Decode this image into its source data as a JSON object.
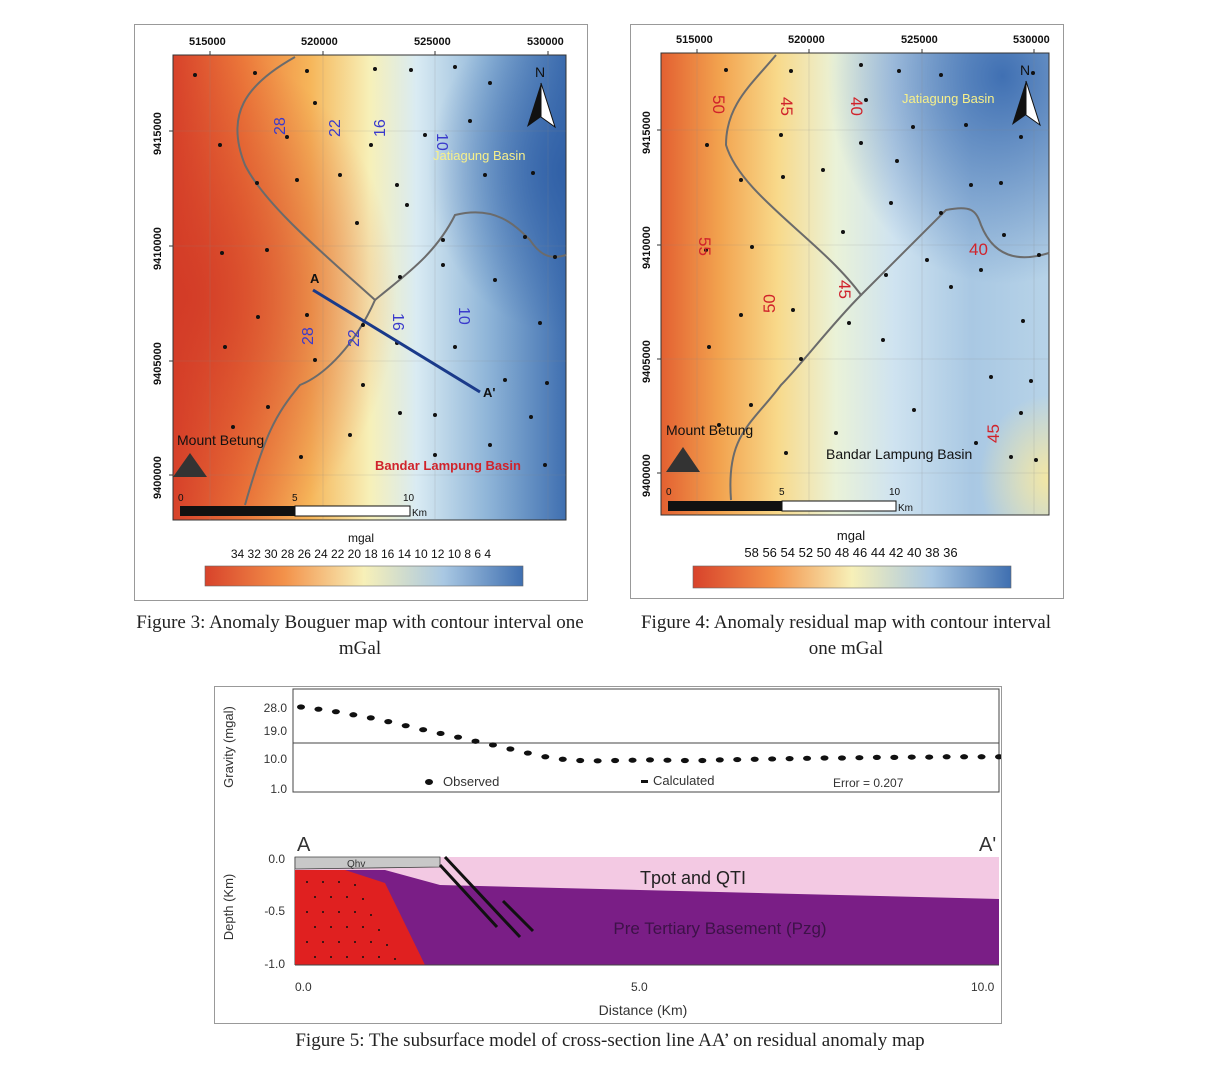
{
  "figure3": {
    "caption": "Figure 3: Anomaly Bouguer map with contour interval one mGal",
    "x_ticks": [
      "515000",
      "520000",
      "525000",
      "530000"
    ],
    "y_ticks": [
      "9415000",
      "9410000",
      "9405000",
      "9400000"
    ],
    "north": "N",
    "contour_labels": [
      "28",
      "22",
      "16",
      "10",
      "28",
      "22",
      "16",
      "10"
    ],
    "place_labels": {
      "jatiagung": "Jatiagung Basin",
      "mount": "Mount Betung",
      "bandar": "Bandar Lampung Basin"
    },
    "line_labels": {
      "a": "A",
      "a_prime": "A'"
    },
    "scale": {
      "zero": "0",
      "five": "5",
      "ten": "10",
      "unit": "Km"
    },
    "colorbar": {
      "unit": "mgal",
      "values": "34 32 30 28 26 24 22 20 18 16 14 10 12 10 8 6 4"
    },
    "colors": {
      "high": "#d8432b",
      "mid": "#f7f0b8",
      "low": "#3f6fb0"
    }
  },
  "figure4": {
    "caption": "Figure 4: Anomaly residual map with contour interval one mGal",
    "x_ticks": [
      "515000",
      "520000",
      "525000",
      "530000"
    ],
    "y_ticks": [
      "9415000",
      "9410000",
      "9405000",
      "9400000"
    ],
    "north": "N",
    "contour_labels": [
      "50",
      "45",
      "40",
      "55",
      "50",
      "45",
      "40",
      "45"
    ],
    "place_labels": {
      "jatiagung": "Jatiagung Basin",
      "mount": "Mount Betung",
      "bandar": "Bandar Lampung Basin"
    },
    "scale": {
      "zero": "0",
      "five": "5",
      "ten": "10",
      "unit": "Km"
    },
    "colorbar": {
      "unit": "mgal",
      "values": "58 56 54 52 50 48 46 44 42 40 38 36"
    }
  },
  "figure5": {
    "caption": "Figure 5: The subsurface model of cross-section line AA’ on residual anomaly map",
    "gravity_axis_label": "Gravity (mgal)",
    "gravity_ticks": [
      "28.0",
      "19.0",
      "10.0",
      "1.0"
    ],
    "legend": {
      "observed": "Observed",
      "calculated": "Calculated",
      "error": "Error = 0.207"
    },
    "depth_axis_label": "Depth (Km)",
    "depth_ticks": [
      "0.0",
      "-0.5",
      "-1.0"
    ],
    "section_labels": {
      "a": "A",
      "a_prime": "A'",
      "qhv": "Qhv",
      "tpot": "Tpot and QTI",
      "basement": "Pre Tertiary Basement (Pzg)"
    },
    "distance_ticks": [
      "0.0",
      "5.0",
      "10.0"
    ],
    "distance_label": "Distance (Km)",
    "chart_data": {
      "type": "scatter",
      "xlabel": "Distance (Km)",
      "ylabel": "Gravity (mgal)",
      "xlim": [
        0,
        10
      ],
      "series": [
        {
          "name": "Observed",
          "x": [
            0,
            0.25,
            0.5,
            0.75,
            1,
            1.25,
            1.5,
            1.75,
            2,
            2.25,
            2.5,
            2.75,
            3,
            3.25,
            3.5,
            3.75,
            4,
            4.25,
            4.5,
            4.75,
            5,
            5.25,
            5.5,
            5.75,
            6,
            6.25,
            6.5,
            6.75,
            7,
            7.25,
            7.5,
            7.75,
            8,
            8.25,
            8.5,
            8.75,
            9,
            9.25,
            9.5,
            9.75,
            10
          ],
          "y": [
            28,
            27.3,
            26.5,
            25.5,
            24.5,
            23.3,
            22,
            20.7,
            19.5,
            18.3,
            17,
            15.8,
            14.5,
            13.2,
            12,
            11.2,
            10.8,
            10.7,
            10.8,
            10.9,
            11,
            10.9,
            10.8,
            10.8,
            11,
            11.1,
            11.2,
            11.3,
            11.4,
            11.5,
            11.6,
            11.6,
            11.7,
            11.8,
            11.8,
            11.9,
            11.9,
            12,
            12,
            12,
            12
          ]
        },
        {
          "name": "Calculated",
          "x": [
            0,
            0.5,
            1,
            1.5,
            2,
            2.5,
            3,
            3.5,
            4,
            4.5,
            5,
            5.5,
            6,
            6.5,
            7,
            7.5,
            8,
            8.5,
            9,
            9.5,
            10
          ],
          "y": [
            28,
            26.5,
            24.5,
            22,
            19.5,
            17,
            14.5,
            12,
            10.8,
            10.8,
            11,
            10.8,
            11,
            11.2,
            11.4,
            11.6,
            11.7,
            11.8,
            11.9,
            12,
            12
          ]
        }
      ]
    }
  }
}
